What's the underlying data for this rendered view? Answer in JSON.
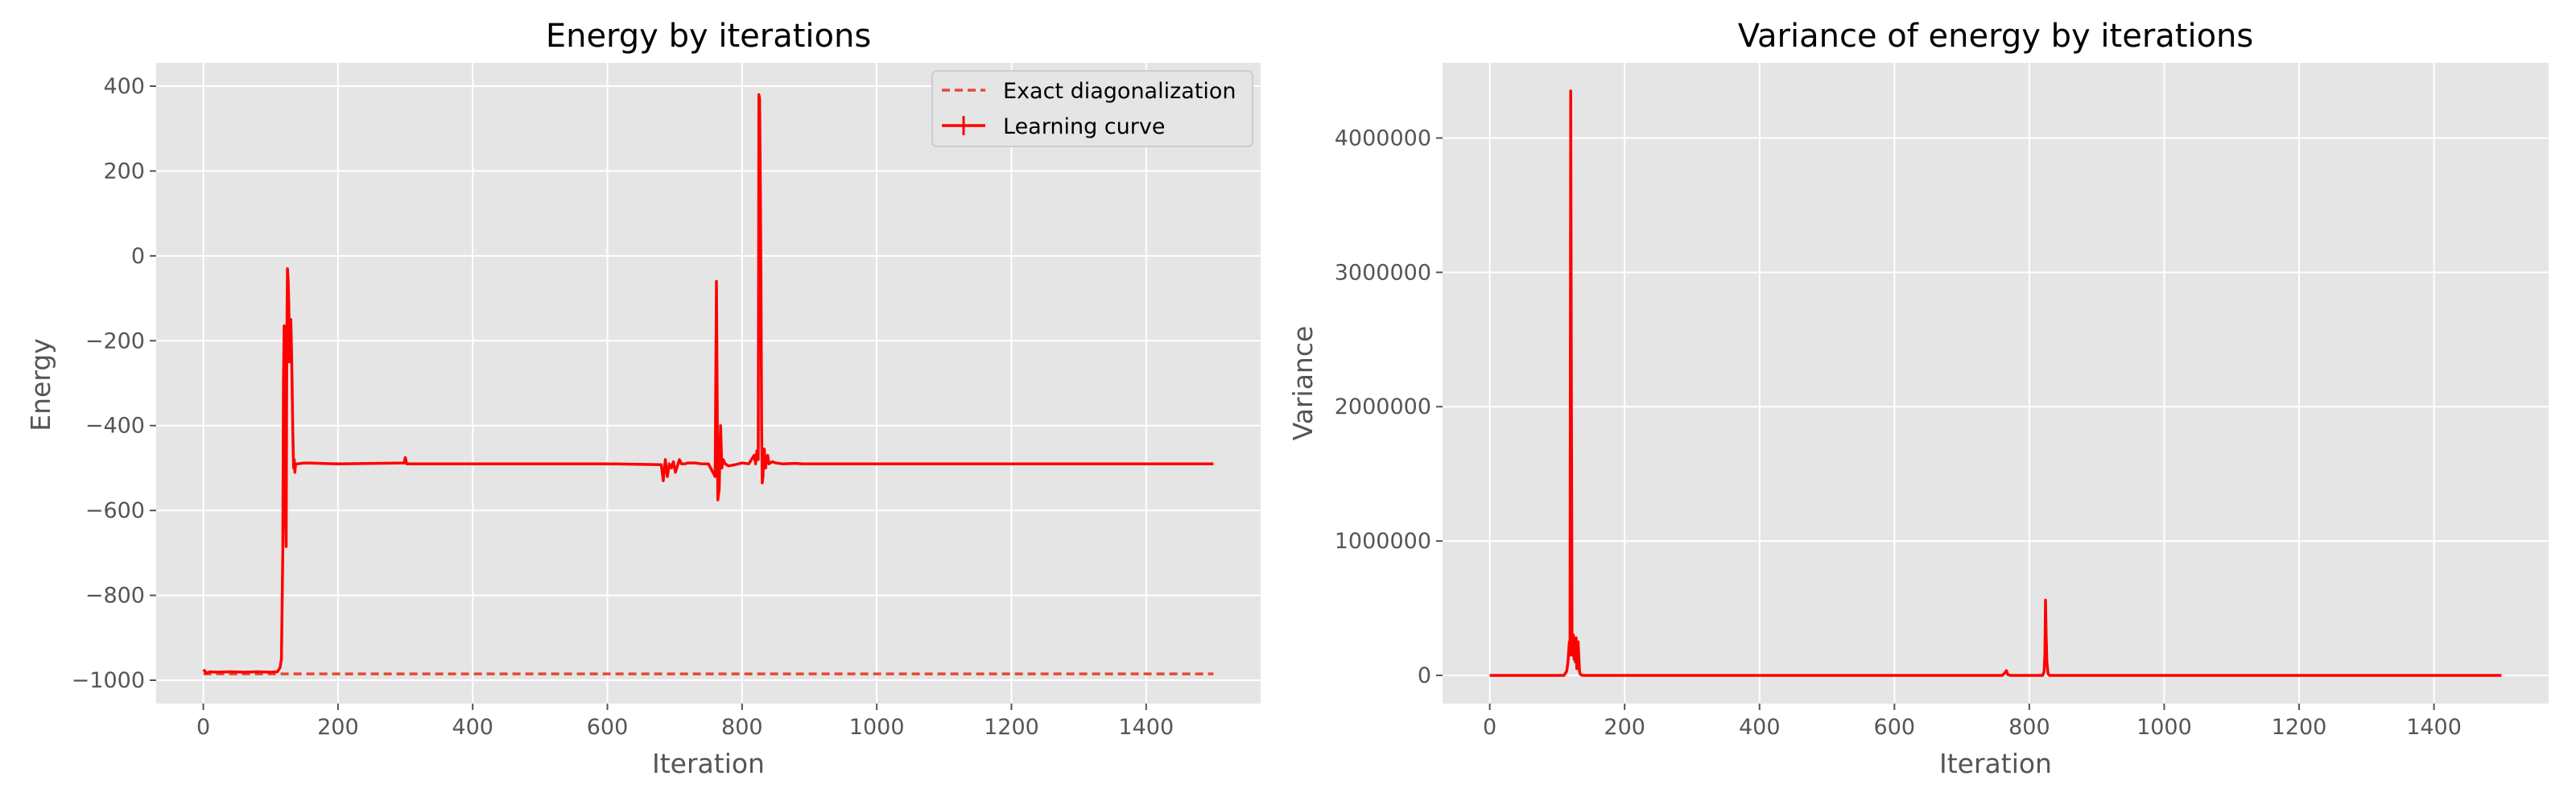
{
  "chart_data": [
    {
      "type": "line",
      "title": "Energy by iterations",
      "xlabel": "Iteration",
      "ylabel": "Energy",
      "xlim": [
        -70,
        1570
      ],
      "ylim": [
        -1055,
        455
      ],
      "xticks": [
        0,
        200,
        400,
        600,
        800,
        1000,
        1200,
        1400
      ],
      "yticks": [
        -1000,
        -800,
        -600,
        -400,
        -200,
        0,
        200,
        400
      ],
      "xtick_labels": [
        "0",
        "200",
        "400",
        "600",
        "800",
        "1000",
        "1200",
        "1400"
      ],
      "ytick_labels": [
        "−1000",
        "−800",
        "−600",
        "−400",
        "−200",
        "0",
        "200",
        "400"
      ],
      "grid": true,
      "legend": {
        "position": "top-right",
        "entries": [
          "Exact diagonalization",
          "Learning curve"
        ]
      },
      "series": [
        {
          "name": "Exact diagonalization",
          "style": "dashed",
          "color": "#e24a33",
          "x": [
            0,
            1500
          ],
          "y": [
            -985,
            -985
          ]
        },
        {
          "name": "Learning curve",
          "style": "solid",
          "color": "#ff0000",
          "x": [
            0,
            5,
            10,
            20,
            40,
            60,
            80,
            100,
            110,
            114,
            116,
            118,
            119,
            120,
            121,
            122,
            123,
            124,
            125,
            126,
            127,
            128,
            129,
            130,
            131,
            132,
            133,
            134,
            135,
            136,
            137,
            140,
            150,
            200,
            298,
            300,
            302,
            400,
            500,
            600,
            680,
            683,
            686,
            689,
            692,
            695,
            698,
            701,
            704,
            707,
            710,
            715,
            720,
            730,
            740,
            750,
            760,
            762,
            764,
            766,
            768,
            770,
            772,
            775,
            780,
            790,
            800,
            810,
            818,
            820,
            822,
            824,
            825,
            826,
            827,
            828,
            829,
            830,
            831,
            832,
            833,
            834,
            835,
            836,
            838,
            840,
            845,
            850,
            860,
            880,
            890,
            900,
            1000,
            1200,
            1400,
            1500
          ],
          "y": [
            -975,
            -983,
            -980,
            -981,
            -980,
            -981,
            -980,
            -981,
            -980,
            -970,
            -950,
            -700,
            -300,
            -165,
            -400,
            -600,
            -685,
            -200,
            -30,
            -60,
            -120,
            -250,
            -180,
            -150,
            -230,
            -320,
            -420,
            -500,
            -480,
            -510,
            -490,
            -490,
            -488,
            -490,
            -488,
            -475,
            -490,
            -490,
            -490,
            -490,
            -492,
            -530,
            -480,
            -520,
            -490,
            -500,
            -485,
            -510,
            -495,
            -480,
            -490,
            -490,
            -488,
            -488,
            -490,
            -490,
            -520,
            -60,
            -575,
            -550,
            -400,
            -500,
            -480,
            -490,
            -495,
            -492,
            -488,
            -490,
            -470,
            -490,
            -460,
            -480,
            380,
            370,
            200,
            -50,
            -400,
            -535,
            -520,
            -470,
            -455,
            -480,
            -500,
            -485,
            -470,
            -490,
            -485,
            -488,
            -490,
            -489,
            -490,
            -490,
            -490,
            -490,
            -490,
            -490
          ]
        }
      ]
    },
    {
      "type": "line",
      "title": "Variance of energy by iterations",
      "xlabel": "Iteration",
      "ylabel": "Variance",
      "xlim": [
        -70,
        1570
      ],
      "ylim": [
        -210000,
        4560000
      ],
      "xticks": [
        0,
        200,
        400,
        600,
        800,
        1000,
        1200,
        1400
      ],
      "yticks": [
        0,
        1000000,
        2000000,
        3000000,
        4000000
      ],
      "xtick_labels": [
        "0",
        "200",
        "400",
        "600",
        "800",
        "1000",
        "1200",
        "1400"
      ],
      "ytick_labels": [
        "0",
        "1000000",
        "2000000",
        "3000000",
        "4000000"
      ],
      "grid": true,
      "series": [
        {
          "style": "solid",
          "color": "#ff0000",
          "x": [
            0,
            100,
            110,
            114,
            116,
            118,
            119,
            120,
            121,
            122,
            123,
            124,
            125,
            126,
            127,
            128,
            129,
            130,
            131,
            132,
            133,
            134,
            135,
            136,
            137,
            138,
            140,
            150,
            300,
            500,
            700,
            760,
            764,
            766,
            768,
            772,
            800,
            818,
            820,
            822,
            823,
            824,
            825,
            826,
            827,
            828,
            830,
            840,
            900,
            1200,
            1500
          ],
          "y": [
            0,
            0,
            0,
            30000,
            100000,
            250000,
            150000,
            4350000,
            2200000,
            200000,
            150000,
            300000,
            120000,
            250000,
            100000,
            280000,
            50000,
            200000,
            250000,
            150000,
            30000,
            10000,
            5000,
            3000,
            1000,
            0,
            0,
            0,
            0,
            0,
            0,
            0,
            20000,
            35000,
            5000,
            0,
            0,
            0,
            0,
            30000,
            150000,
            560000,
            300000,
            100000,
            50000,
            10000,
            0,
            0,
            0,
            0,
            0
          ]
        }
      ]
    }
  ]
}
